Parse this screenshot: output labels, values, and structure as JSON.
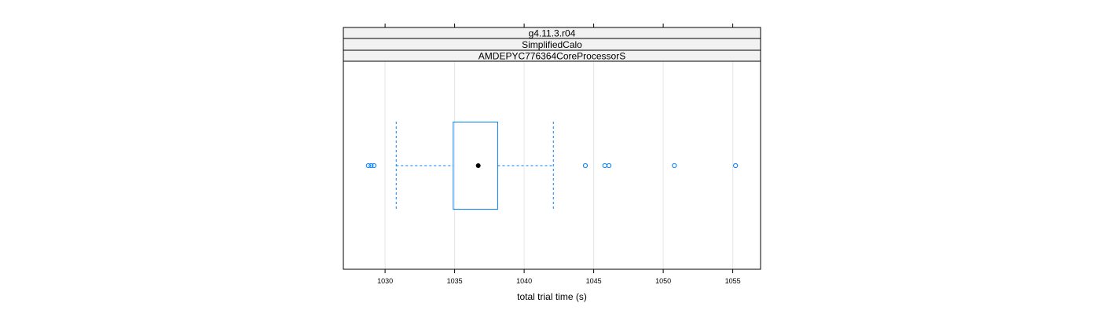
{
  "chart_data": {
    "type": "boxplot",
    "strips": [
      "g4.11.3.r04",
      "SimplifiedCalo",
      "AMDEPYC776364CoreProcessorS"
    ],
    "xlabel": "total trial time (s)",
    "xlim": [
      1027,
      1057
    ],
    "x_ticks": [
      1030,
      1035,
      1040,
      1045,
      1050,
      1055
    ],
    "x_tick_labels": [
      "1030",
      "1035",
      "1040",
      "1045",
      "1050",
      "1055"
    ],
    "grid": "vertical",
    "box": {
      "whisker_low": 1030.8,
      "q1": 1034.9,
      "median": 1036.7,
      "q3": 1038.1,
      "whisker_high": 1042.1
    },
    "outliers": [
      1028.8,
      1029.0,
      1029.2,
      1044.4,
      1045.8,
      1046.1,
      1050.8,
      1055.2
    ],
    "colors": {
      "box": "#0080ff",
      "median_dot": "#000000",
      "strip_bg": "#f2f2f2",
      "grid": "#e6e6e6"
    }
  }
}
